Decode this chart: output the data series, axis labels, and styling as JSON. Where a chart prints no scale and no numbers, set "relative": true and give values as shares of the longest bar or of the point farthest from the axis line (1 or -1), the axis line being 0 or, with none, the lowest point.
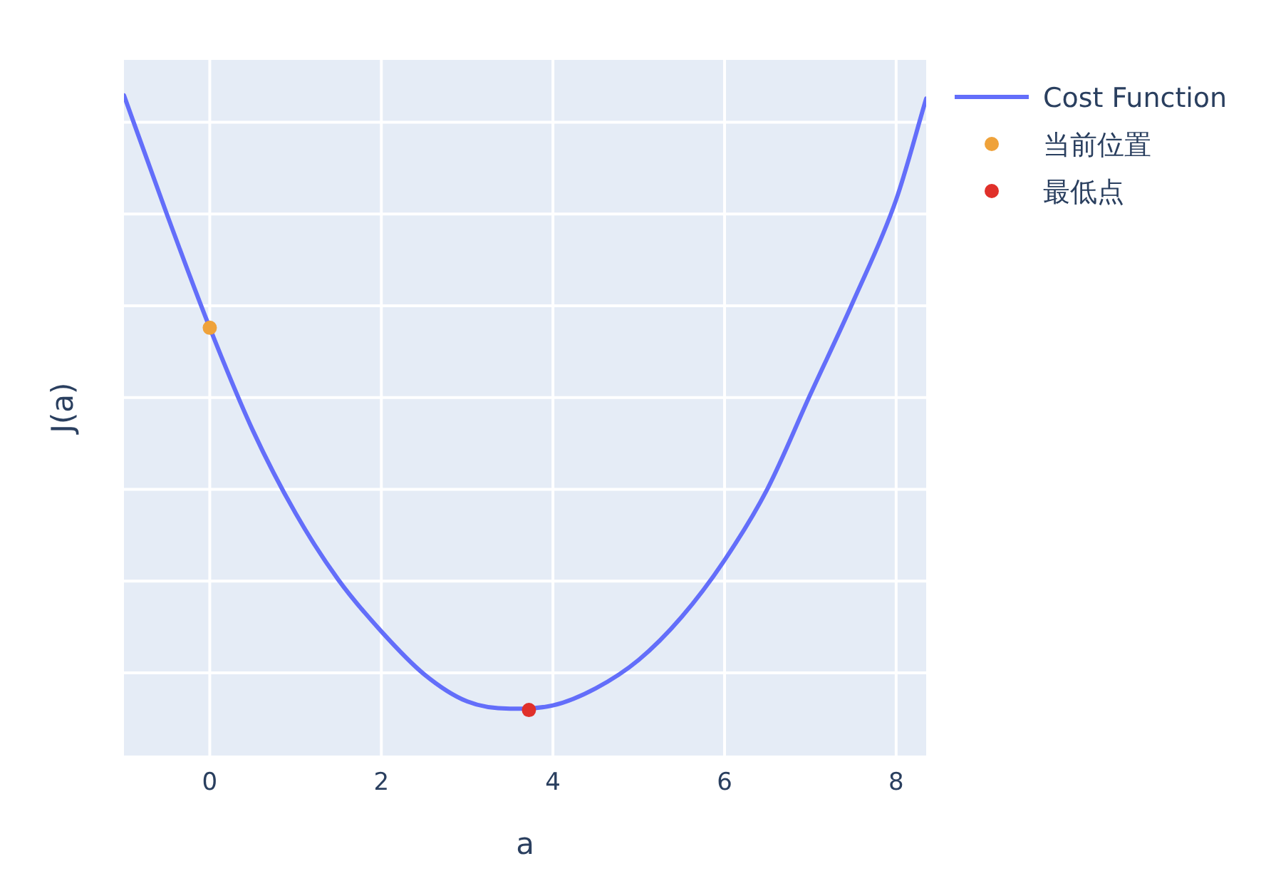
{
  "chart_data": {
    "type": "line",
    "xlabel": "a",
    "ylabel": "J(a)",
    "relative": true,
    "grid": true,
    "legend": "top right",
    "xlim": [
      -1,
      8.35
    ],
    "xticks": [
      0,
      2,
      4,
      6,
      8
    ],
    "tick_labels": "x",
    "series": [
      {
        "name": "Cost Function",
        "color": "#636efa",
        "marker": "none",
        "x": [
          -1,
          -0.5,
          0,
          0.5,
          1,
          1.5,
          2,
          2.5,
          3,
          3.5,
          4,
          4.5,
          5,
          5.5,
          6,
          6.5,
          7,
          7.5,
          8,
          8.35
        ],
        "values": [
          1.0,
          0.82,
          0.648,
          0.493,
          0.367,
          0.266,
          0.188,
          0.123,
          0.082,
          0.071,
          0.076,
          0.102,
          0.145,
          0.21,
          0.296,
          0.404,
          0.547,
          0.688,
          0.842,
          0.995
        ]
      },
      {
        "name": "当前位置",
        "type": "scatter",
        "color": "#efa23a",
        "marker": "circle",
        "x": [
          0
        ],
        "values": [
          0.648
        ]
      },
      {
        "name": "最低点",
        "type": "scatter",
        "color": "#e0302a",
        "marker": "circle",
        "x": [
          3.72
        ],
        "values": [
          0.069
        ]
      }
    ]
  }
}
